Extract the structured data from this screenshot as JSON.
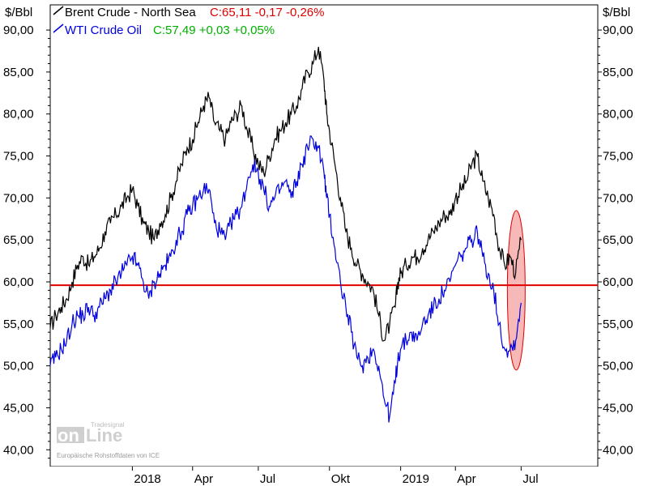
{
  "chart_data": {
    "type": "line",
    "unit_label_left": "$/Bbl",
    "unit_label_right": "$/Bbl",
    "ylim": [
      38,
      93
    ],
    "y_ticks": [
      "90,00",
      "85,00",
      "80,00",
      "75,00",
      "70,00",
      "65,00",
      "60,00",
      "55,00",
      "50,00",
      "45,00",
      "40,00"
    ],
    "y_tick_values": [
      90,
      85,
      80,
      75,
      70,
      65,
      60,
      55,
      50,
      45,
      40
    ],
    "x_tick_labels": [
      "2018",
      "Apr",
      "Jul",
      "Okt",
      "2019",
      "Apr",
      "Jul"
    ],
    "x_tick_index": [
      0.15,
      0.26,
      0.38,
      0.51,
      0.64,
      0.74,
      0.86
    ],
    "legend": [
      {
        "name": "Brent Crude - North Sea",
        "quote": "C:65,11 -0,17 -0,26%",
        "color": "#000000",
        "quote_color": "#e00000"
      },
      {
        "name": "WTI Crude Oil",
        "quote": "C:57,49 +0,03 +0,05%",
        "color": "#0000e0",
        "quote_color": "#00b000"
      }
    ],
    "horizontal_line": {
      "value": 59.6,
      "color": "#e00000"
    },
    "highlight_ellipse": {
      "y_range": [
        49.5,
        68.5
      ],
      "fill": "#f4a0a0",
      "stroke": "#e00000"
    },
    "series": [
      {
        "name": "Brent Crude - North Sea",
        "color": "#000000",
        "x": [
          0,
          0.01,
          0.02,
          0.03,
          0.04,
          0.05,
          0.06,
          0.07,
          0.08,
          0.09,
          0.1,
          0.11,
          0.12,
          0.13,
          0.14,
          0.15,
          0.16,
          0.17,
          0.18,
          0.19,
          0.2,
          0.21,
          0.22,
          0.23,
          0.24,
          0.25,
          0.26,
          0.27,
          0.28,
          0.29,
          0.3,
          0.31,
          0.32,
          0.33,
          0.34,
          0.35,
          0.36,
          0.37,
          0.38,
          0.39,
          0.4,
          0.41,
          0.42,
          0.43,
          0.44,
          0.45,
          0.46,
          0.47,
          0.48,
          0.49,
          0.5,
          0.505,
          0.51,
          0.52,
          0.53,
          0.54,
          0.55,
          0.56,
          0.57,
          0.58,
          0.59,
          0.6,
          0.61,
          0.62,
          0.63,
          0.635,
          0.64,
          0.65,
          0.66,
          0.67,
          0.68,
          0.69,
          0.7,
          0.71,
          0.72,
          0.73,
          0.74,
          0.75,
          0.76,
          0.77,
          0.78,
          0.79,
          0.8,
          0.81,
          0.82,
          0.83,
          0.84,
          0.85,
          0.86
        ],
        "values": [
          54.5,
          56,
          57,
          58,
          60,
          62,
          63,
          62,
          63,
          64,
          66,
          67,
          68,
          69,
          70,
          71,
          69,
          67,
          66,
          65,
          67,
          68,
          70,
          72,
          74,
          76,
          77,
          79,
          81,
          82,
          79,
          78,
          77,
          79,
          80,
          81,
          78,
          76,
          74,
          73,
          75,
          77,
          78,
          79,
          80,
          81,
          83,
          85,
          86,
          88,
          84,
          80,
          78,
          74,
          70,
          66,
          64,
          62,
          61,
          60,
          59,
          56,
          53,
          55,
          57,
          60,
          61,
          62,
          63,
          63,
          64,
          65,
          66,
          67,
          68,
          68,
          70,
          71,
          72,
          74,
          75,
          72,
          70,
          68,
          64,
          62,
          63,
          61,
          65
        ]
      },
      {
        "name": "WTI Crude Oil",
        "color": "#0000e0",
        "x": [
          0,
          0.01,
          0.02,
          0.03,
          0.04,
          0.05,
          0.06,
          0.07,
          0.08,
          0.09,
          0.1,
          0.11,
          0.12,
          0.13,
          0.14,
          0.15,
          0.16,
          0.17,
          0.18,
          0.19,
          0.2,
          0.21,
          0.22,
          0.23,
          0.24,
          0.25,
          0.26,
          0.27,
          0.28,
          0.29,
          0.3,
          0.31,
          0.32,
          0.33,
          0.34,
          0.35,
          0.36,
          0.37,
          0.38,
          0.39,
          0.4,
          0.41,
          0.42,
          0.43,
          0.44,
          0.45,
          0.46,
          0.47,
          0.48,
          0.49,
          0.5,
          0.505,
          0.51,
          0.52,
          0.53,
          0.54,
          0.55,
          0.56,
          0.57,
          0.58,
          0.59,
          0.6,
          0.61,
          0.62,
          0.63,
          0.635,
          0.64,
          0.65,
          0.66,
          0.67,
          0.68,
          0.69,
          0.7,
          0.71,
          0.72,
          0.73,
          0.74,
          0.75,
          0.76,
          0.77,
          0.78,
          0.79,
          0.8,
          0.81,
          0.82,
          0.83,
          0.84,
          0.85,
          0.86
        ],
        "values": [
          50,
          51,
          52,
          53,
          55,
          56,
          56,
          57,
          56,
          57,
          58,
          59,
          60,
          61,
          62,
          63,
          62,
          60,
          58,
          60,
          61,
          62,
          63,
          65,
          66,
          68,
          69,
          70,
          71,
          71,
          67,
          66,
          65,
          67,
          68,
          69,
          72,
          74,
          73,
          71,
          69,
          70,
          71,
          72,
          70,
          72,
          74,
          76,
          77,
          76,
          73,
          70,
          68,
          64,
          60,
          57,
          54,
          51,
          50,
          51,
          52,
          50,
          46,
          44,
          48,
          51,
          52,
          53,
          54,
          53,
          55,
          56,
          57,
          58,
          59,
          60,
          62,
          63,
          64,
          65,
          66,
          63,
          61,
          59,
          55,
          52,
          52,
          53,
          57.5
        ]
      }
    ]
  },
  "watermark": {
    "brand_left": "on",
    "brand_right": "Line",
    "tagline": "Tradesignal",
    "source": "Europäische Rohstoffdaten von ICE"
  }
}
